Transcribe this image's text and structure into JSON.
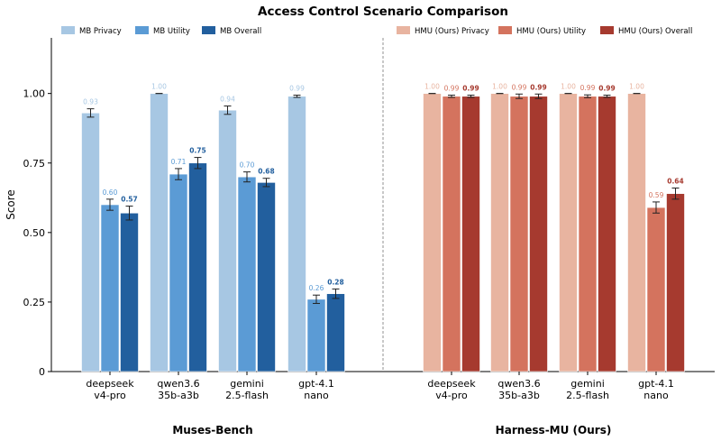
{
  "chart_data": {
    "type": "bar",
    "title": "Access Control Scenario Comparison",
    "ylabel": "Score",
    "ylim": [
      0,
      1.2
    ],
    "yticks": [
      {
        "value": 0,
        "label": "0"
      },
      {
        "value": 0.25,
        "label": "0.25"
      },
      {
        "value": 0.5,
        "label": "0.50"
      },
      {
        "value": 0.75,
        "label": "0.75"
      },
      {
        "value": 1.0,
        "label": "1.00"
      }
    ],
    "legend_position": "top",
    "colors": {
      "mb_privacy": "#a7c7e3",
      "mb_utility": "#5b9bd5",
      "mb_overall": "#225f9e",
      "hmu_privacy": "#e8b4a0",
      "hmu_utility": "#d4735e",
      "hmu_overall": "#a63a2f"
    },
    "series": [
      {
        "name": "MB Privacy",
        "key": "mb_privacy"
      },
      {
        "name": "MB Utility",
        "key": "mb_utility"
      },
      {
        "name": "MB Overall",
        "key": "mb_overall"
      },
      {
        "name": "HMU (Ours) Privacy",
        "key": "hmu_privacy"
      },
      {
        "name": "HMU (Ours) Utility",
        "key": "hmu_utility"
      },
      {
        "name": "HMU (Ours) Overall",
        "key": "hmu_overall"
      }
    ],
    "groups": [
      {
        "label": "Muses-Bench",
        "series_keys": [
          "mb_privacy",
          "mb_utility",
          "mb_overall"
        ],
        "categories": [
          {
            "label": [
              "deepseek",
              "v4-pro"
            ],
            "values": [
              0.93,
              0.6,
              0.57
            ],
            "errors": [
              0.015,
              0.02,
              0.025
            ],
            "value_labels": [
              "0.93",
              "0.60",
              "0.57"
            ]
          },
          {
            "label": [
              "qwen3.6",
              "35b-a3b"
            ],
            "values": [
              1.0,
              0.71,
              0.75
            ],
            "errors": [
              0.0,
              0.02,
              0.02
            ],
            "value_labels": [
              "1.00",
              "0.71",
              "0.75"
            ]
          },
          {
            "label": [
              "gemini",
              "2.5-flash"
            ],
            "values": [
              0.94,
              0.7,
              0.68
            ],
            "errors": [
              0.015,
              0.018,
              0.015
            ],
            "value_labels": [
              "0.94",
              "0.70",
              "0.68"
            ]
          },
          {
            "label": [
              "gpt-4.1",
              "nano"
            ],
            "values": [
              0.99,
              0.26,
              0.28
            ],
            "errors": [
              0.004,
              0.015,
              0.017
            ],
            "value_labels": [
              "0.99",
              "0.26",
              "0.28"
            ]
          }
        ]
      },
      {
        "label": "Harness-MU (Ours)",
        "series_keys": [
          "hmu_privacy",
          "hmu_utility",
          "hmu_overall"
        ],
        "categories": [
          {
            "label": [
              "deepseek",
              "v4-pro"
            ],
            "values": [
              1.0,
              0.99,
              0.99
            ],
            "errors": [
              0.0,
              0.004,
              0.004
            ],
            "value_labels": [
              "1.00",
              "0.99",
              "0.99"
            ]
          },
          {
            "label": [
              "qwen3.6",
              "35b-a3b"
            ],
            "values": [
              1.0,
              0.99,
              0.99
            ],
            "errors": [
              0.0,
              0.008,
              0.008
            ],
            "value_labels": [
              "1.00",
              "0.99",
              "0.99"
            ]
          },
          {
            "label": [
              "gemini",
              "2.5-flash"
            ],
            "values": [
              1.0,
              0.99,
              0.99
            ],
            "errors": [
              0.0,
              0.005,
              0.004
            ],
            "value_labels": [
              "1.00",
              "0.99",
              "0.99"
            ]
          },
          {
            "label": [
              "gpt-4.1",
              "nano"
            ],
            "values": [
              1.0,
              0.59,
              0.64
            ],
            "errors": [
              0.0,
              0.02,
              0.02
            ],
            "value_labels": [
              "1.00",
              "0.59",
              "0.64"
            ]
          }
        ]
      }
    ]
  }
}
